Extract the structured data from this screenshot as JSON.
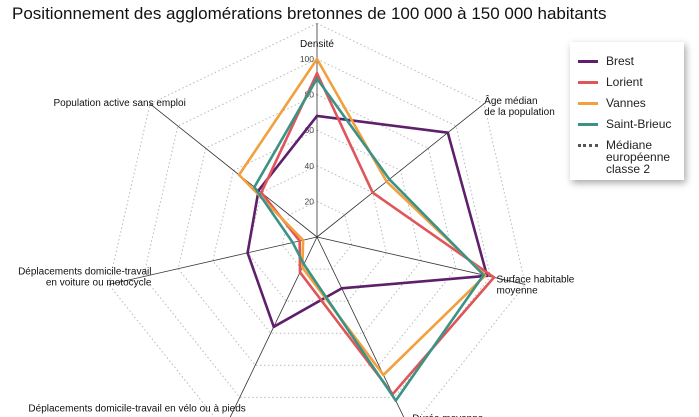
{
  "title": "Positionnement des agglomérations bretonnes de 100 000 à 150 000 habitants",
  "chart_data": {
    "type": "radar",
    "axes": [
      "Densité",
      "Âge médian\nde la population",
      "Surface habitable\nmoyenne",
      "Durée moyenne\ndes déplacements domicile-travail",
      "Déplacements domicile-travail en vélo ou à pieds",
      "Déplacements domicile-travail\nen voiture ou motocycle",
      "Population active sans emploi"
    ],
    "rlim": [
      0,
      100
    ],
    "ticks": [
      20,
      40,
      60,
      80,
      100
    ],
    "tick_labels": [
      "20",
      "40",
      "60",
      "80",
      "100"
    ],
    "grid": true,
    "legend_position": "top-right",
    "series": [
      {
        "name": "Brest",
        "color": "#5e1f6b",
        "values": [
          68,
          94,
          98,
          32,
          56,
          40,
          42
        ]
      },
      {
        "name": "Lorient",
        "color": "#e05559",
        "values": [
          92,
          40,
          102,
          98,
          22,
          10,
          40
        ]
      },
      {
        "name": "Vannes",
        "color": "#f2a03e",
        "values": [
          100,
          50,
          97,
          86,
          19,
          8,
          56
        ]
      },
      {
        "name": "Saint-Brieuc",
        "color": "#3b9385",
        "values": [
          89,
          52,
          96,
          102,
          17,
          14,
          45
        ]
      }
    ],
    "reference": {
      "name": "Médiane\neuropéenne\nclasse 2",
      "style": "dotted",
      "color": "#555555"
    }
  }
}
